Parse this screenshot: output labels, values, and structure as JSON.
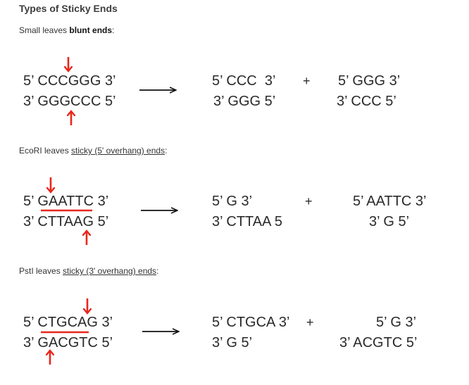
{
  "title": "Types of Sticky Ends",
  "sections": [
    {
      "caption_prefix": "Small leaves ",
      "caption_term": "blunt ends",
      "caption_suffix": ":",
      "top": "5’ CCCGGG 3’",
      "bottom": "3’ GGGCCC 5’",
      "frag1_top": "5’ CCC  3’",
      "frag1_bottom": "3’ GGG 5’",
      "plus": "+",
      "frag2_top": "5’ GGG 3’",
      "frag2_bottom": "3’ CCC 5’"
    },
    {
      "caption_prefix": "EcoRI leaves ",
      "caption_term": "sticky (5' overhang) ends",
      "caption_suffix": ":",
      "top": "5’ GAATTC 3’",
      "bottom": "3’ CTTAAG 5’",
      "frag1_top": "5’ G 3’",
      "frag1_bottom": "3’ CTTAA 5",
      "plus": "+",
      "frag2_top": "5’ AATTC 3’",
      "frag2_bottom": "3’ G 5’"
    },
    {
      "caption_prefix": "PstI leaves ",
      "caption_term": "sticky (3' overhang) ends",
      "caption_suffix": ":",
      "top": "5’ CTGCAG 3’",
      "bottom": "3’ GACGTC 5’",
      "frag1_top": "5’ CTGCA 3’",
      "frag1_bottom": "3’ G 5’",
      "plus": "+",
      "frag2_top": "5’ G 3’",
      "frag2_bottom": "3’ ACGTC 5’"
    }
  ],
  "colors": {
    "cut": "#e8261c",
    "text": "#2a2a2a",
    "arrow": "#111111"
  }
}
